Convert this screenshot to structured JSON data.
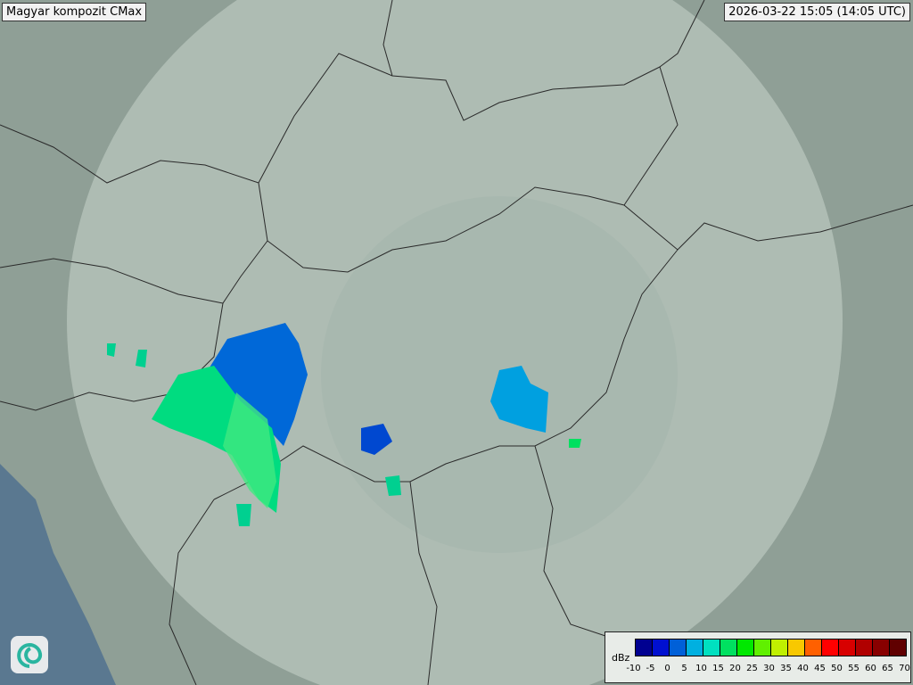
{
  "header": {
    "title": "Magyar kompozit  CMax",
    "timestamp": "2026-03-22 15:05 (14:05 UTC)"
  },
  "legend": {
    "unit": "dBz",
    "ticks": [
      "-10",
      "-5",
      "0",
      "5",
      "10",
      "15",
      "20",
      "25",
      "30",
      "35",
      "40",
      "45",
      "50",
      "55",
      "60",
      "65",
      "70"
    ],
    "colors": [
      "#000090",
      "#0010d0",
      "#0060d8",
      "#00b0e0",
      "#00e0c0",
      "#00e060",
      "#00e800",
      "#60f000",
      "#c0f000",
      "#f8c800",
      "#ff6000",
      "#ff0000",
      "#d80000",
      "#b00000",
      "#880000",
      "#600000"
    ]
  },
  "map": {
    "land_color": "#8f9f96",
    "coverage_color": "#c8d4cc",
    "sea_color": "#5a7890",
    "border_color": "#2a2a2a",
    "icon": "swirl-logo-icon"
  }
}
